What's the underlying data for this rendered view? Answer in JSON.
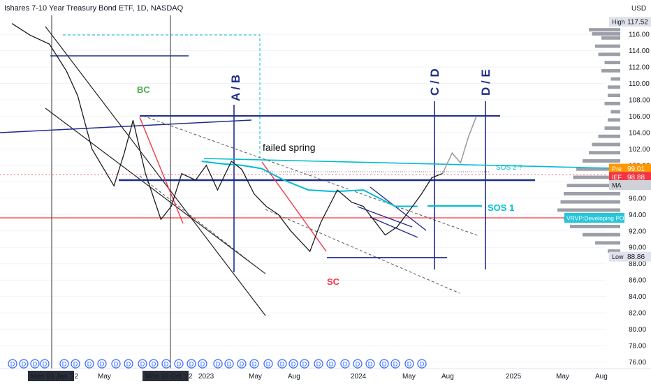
{
  "title": "Ishares 7-10 Year Treasury Bond ETF, 1D, NASDAQ",
  "currency": "USD",
  "chart_data": {
    "type": "line",
    "ylim": [
      75.2,
      118.3
    ],
    "y_ticks": [
      76,
      78,
      80,
      82,
      84,
      86,
      88,
      90,
      92,
      94,
      96,
      98,
      100,
      102,
      104,
      106,
      108,
      110,
      112,
      114,
      116
    ],
    "y_tick_labels": [
      "76.00",
      "78.00",
      "80.00",
      "82.00",
      "84.00",
      "86.00",
      "88.00",
      "90.00",
      "92.00",
      "94.00",
      "96.00",
      "98.00",
      "100.00",
      "102.00",
      "104.00",
      "106.00",
      "108.00",
      "110.00",
      "112.00",
      "114.00",
      "116.00"
    ],
    "x_labels": [
      "Mon 03 Jan '22",
      "May",
      "Mon 10 Oct '22",
      "2023",
      "May",
      "Aug",
      "2024",
      "May",
      "Aug",
      "2025",
      "May",
      "Aug"
    ],
    "price_x": [
      "2021-10-01",
      "2021-11-15",
      "2022-01-03",
      "2022-02-15",
      "2022-03-15",
      "2022-04-20",
      "2022-06-14",
      "2022-07-10",
      "2022-08-01",
      "2022-09-01",
      "2022-10-10",
      "2022-11-05",
      "2022-12-01",
      "2023-01-05",
      "2023-02-01",
      "2023-03-01",
      "2023-04-05",
      "2023-05-01",
      "2023-06-01",
      "2023-07-01",
      "2023-08-01",
      "2023-09-01",
      "2023-10-19",
      "2023-11-15",
      "2023-12-27",
      "2024-02-01",
      "2024-03-01",
      "2024-04-25",
      "2024-05-25",
      "2024-06-25",
      "2024-07-25",
      "2024-08-20",
      "2024-09-16"
    ],
    "price_y": [
      117.3,
      115.9,
      114.8,
      111.5,
      108.5,
      102.0,
      97.5,
      101.5,
      105.5,
      99.0,
      93.4,
      95.0,
      99.0,
      98.2,
      100.0,
      97.0,
      100.5,
      99.5,
      96.5,
      95.0,
      94.0,
      92.0,
      89.5,
      93.0,
      97.0,
      95.5,
      95.0,
      91.5,
      92.5,
      94.5,
      96.5,
      98.5,
      99.01
    ],
    "forecast_x": [
      "2024-09-16",
      "2024-10-10",
      "2024-10-31",
      "2024-11-20",
      "2024-12-10"
    ],
    "forecast_y": [
      99.01,
      101.5,
      100.3,
      103.5,
      106.0
    ],
    "ma_x": [
      "2023-01-20",
      "2023-03-10",
      "2023-05-01",
      "2023-06-20",
      "2023-08-15",
      "2023-10-15",
      "2023-12-20",
      "2024-03-01",
      "2024-05-20",
      "2024-07-15"
    ],
    "ma_y": [
      100.5,
      100.2,
      100.0,
      99.6,
      98.2,
      97.0,
      96.8,
      97.0,
      95.0,
      95.0
    ],
    "vrvp_levels": [
      116.5,
      116.0,
      115.5,
      114.5,
      113.5,
      112.5,
      111.5,
      110.5,
      109.5,
      108.5,
      107.5,
      106.5,
      105.5,
      104.5,
      103.5,
      102.5,
      101.5,
      100.5,
      99.5,
      98.5,
      97.5,
      96.5,
      95.5,
      94.5,
      93.5,
      92.5,
      91.5,
      90.5,
      89.5
    ],
    "vrvp_volume": [
      0.5,
      0.45,
      0.3,
      0.4,
      0.35,
      0.25,
      0.3,
      0.15,
      0.2,
      0.2,
      0.25,
      0.15,
      0.2,
      0.25,
      0.35,
      0.45,
      0.5,
      0.6,
      0.7,
      0.75,
      0.85,
      0.9,
      0.95,
      1.0,
      0.9,
      0.8,
      0.6,
      0.4,
      0.2
    ]
  },
  "price_tags": {
    "high_label": "High",
    "high_value": "117.52",
    "low_label": "Low",
    "low_value": "88.86",
    "pre_label": "Pre",
    "pre_value": "99.01",
    "ief_label": "IEF",
    "ief_value": "98.88",
    "ma_label": "MA",
    "poc_label": "VRVP:Developing POC"
  },
  "annotations": {
    "bc": "BC",
    "sc": "SC",
    "ab": "A / B",
    "cd": "C / D",
    "de": "D / E",
    "failed_spring": "failed spring",
    "sos1": "SOS 1",
    "sos2": "SOS 2 ?"
  },
  "events": {
    "dividend_label": "D",
    "dividend_count": 33
  },
  "colors": {
    "navy": "#1f2d8c",
    "price": "#1b1b1b",
    "teal": "#00bcd4",
    "red": "#f23645",
    "green": "#4caf50",
    "forecast": "#9e9e9e",
    "dividend": "#2962ff",
    "pre_tag": "#ff9800",
    "ief_tag": "#f23645",
    "ma_tag": "#cfd2d8",
    "poc_tag": "#26c6da",
    "vrvp": "#7b7f8a"
  }
}
